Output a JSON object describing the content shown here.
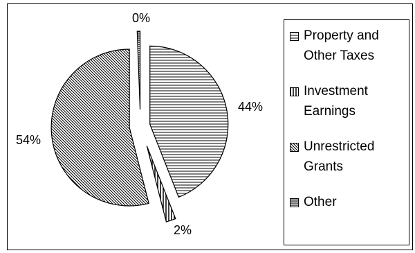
{
  "chart_data": {
    "type": "pie",
    "title": "",
    "categories": [
      "Property and Other Taxes",
      "Investment Earnings",
      "Unrestricted Grants",
      "Other"
    ],
    "values": [
      44,
      2,
      54,
      0
    ],
    "value_labels": [
      "44%",
      "2%",
      "54%",
      "0%"
    ],
    "exploded": true,
    "patterns": [
      "horizontal-lines",
      "vertical-lines",
      "diagonal-lines",
      "horizontal-lines"
    ],
    "legend_position": "right"
  },
  "legend": {
    "items": [
      {
        "label": "Property and Other Taxes"
      },
      {
        "label": "Investment Earnings"
      },
      {
        "label": "Unrestricted Grants"
      },
      {
        "label": "Other"
      }
    ]
  }
}
